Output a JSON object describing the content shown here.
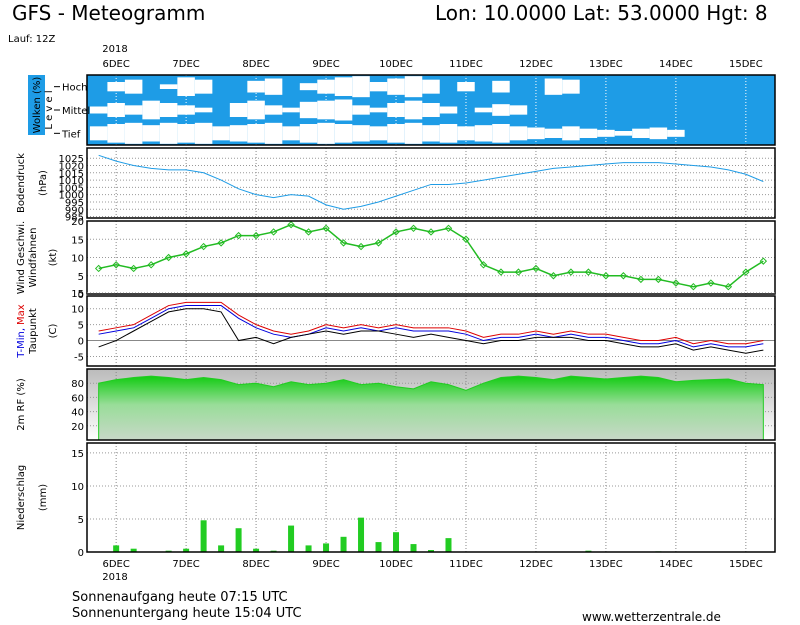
{
  "header": {
    "title": "GFS - Meteogramm",
    "location": "Lon: 10.0000 Lat: 53.0000 Hgt: 8",
    "run": "Lauf: 12Z"
  },
  "time": {
    "year": "2018",
    "xlim": [
      -10,
      226
    ],
    "xticks": [
      {
        "value": 0,
        "label": "6DEC"
      },
      {
        "value": 24,
        "label": "7DEC"
      },
      {
        "value": 48,
        "label": "8DEC"
      },
      {
        "value": 72,
        "label": "9DEC"
      },
      {
        "value": 96,
        "label": "10DEC"
      },
      {
        "value": 120,
        "label": "11DEC"
      },
      {
        "value": 144,
        "label": "12DEC"
      },
      {
        "value": 168,
        "label": "13DEC"
      },
      {
        "value": 192,
        "label": "14DEC"
      },
      {
        "value": 216,
        "label": "15DEC"
      }
    ],
    "x": [
      -6,
      0,
      6,
      12,
      18,
      24,
      30,
      36,
      42,
      48,
      54,
      60,
      66,
      72,
      78,
      84,
      90,
      96,
      102,
      108,
      114,
      120,
      126,
      132,
      138,
      144,
      150,
      156,
      162,
      168,
      174,
      180,
      186,
      192,
      198,
      204,
      210,
      216,
      222
    ]
  },
  "chart_data": [
    {
      "type": "band",
      "ylabel": "Wolken (%)",
      "level_label": "L e v e l",
      "background": "#1e9ce6",
      "color": "#ffffff",
      "series": [
        {
          "name": "Hoch",
          "values": [
            0,
            40,
            60,
            0,
            20,
            80,
            60,
            0,
            0,
            50,
            70,
            0,
            30,
            60,
            80,
            90,
            40,
            70,
            90,
            60,
            0,
            40,
            0,
            50,
            0,
            0,
            70,
            60,
            0,
            0,
            0,
            0,
            0,
            0,
            0,
            0,
            0,
            0,
            0
          ]
        },
        {
          "name": "Mittel",
          "values": [
            30,
            60,
            40,
            80,
            60,
            40,
            20,
            0,
            60,
            80,
            40,
            20,
            70,
            80,
            90,
            40,
            20,
            60,
            80,
            60,
            30,
            0,
            20,
            50,
            40,
            0,
            0,
            0,
            0,
            0,
            0,
            0,
            0,
            0,
            0,
            0,
            0,
            0,
            0
          ]
        },
        {
          "name": "Tief",
          "values": [
            60,
            80,
            90,
            70,
            90,
            80,
            90,
            60,
            70,
            80,
            90,
            60,
            80,
            90,
            80,
            70,
            60,
            80,
            90,
            70,
            80,
            60,
            70,
            80,
            60,
            50,
            40,
            60,
            40,
            30,
            20,
            40,
            50,
            30,
            0,
            0,
            0,
            0,
            0
          ]
        }
      ]
    },
    {
      "type": "line",
      "ylabel": [
        "Bodendruck",
        "(hPa)"
      ],
      "color": "#1e9ce6",
      "ylim": [
        984,
        1032
      ],
      "yticks": [
        985,
        990,
        995,
        1000,
        1005,
        1010,
        1015,
        1020,
        1025
      ],
      "grid": true,
      "values": [
        1027,
        1023,
        1020,
        1018,
        1017,
        1017,
        1015,
        1010,
        1004,
        1000,
        998,
        1000,
        999,
        993,
        990,
        992,
        995,
        999,
        1003,
        1007,
        1007,
        1008,
        1010,
        1012,
        1014,
        1016,
        1018,
        1019,
        1020,
        1021,
        1022,
        1022,
        1022,
        1021,
        1020,
        1019,
        1017,
        1014,
        1009
      ]
    },
    {
      "type": "line",
      "ylabel": [
        "Windfahnen",
        "(kt)"
      ],
      "ylim": [
        0,
        20
      ],
      "yticks": [
        0,
        5,
        10,
        15,
        20
      ],
      "grid": true,
      "markers": true,
      "series": [
        {
          "name": "Wind Geschwi.",
          "color": "#22bb22",
          "values": [
            7,
            8,
            7,
            8,
            10,
            11,
            13,
            14,
            16,
            16,
            17,
            19,
            17,
            18,
            14,
            13,
            14,
            17,
            18,
            17,
            18,
            15,
            8,
            6,
            6,
            7,
            5,
            6,
            6,
            5,
            5,
            4,
            4,
            3,
            2,
            3,
            2,
            6,
            9
          ]
        }
      ]
    },
    {
      "type": "line",
      "ylabel": [
        "(C)"
      ],
      "ylim": [
        -8,
        14
      ],
      "yticks": [
        -5,
        0,
        5,
        10,
        15
      ],
      "grid": true,
      "series": [
        {
          "name": "T-Min,",
          "color": "#0000dd",
          "values": [
            2,
            3,
            4,
            7,
            10,
            11,
            11,
            11,
            7,
            4,
            2,
            1,
            2,
            4,
            3,
            4,
            3,
            4,
            3,
            3,
            3,
            2,
            0,
            1,
            1,
            2,
            1,
            2,
            1,
            1,
            0,
            -1,
            -1,
            0,
            -2,
            -1,
            -2,
            -2,
            -1
          ]
        },
        {
          "name": "Max",
          "color": "#dd0000",
          "values": [
            3,
            4,
            5,
            8,
            11,
            12,
            12,
            12,
            8,
            5,
            3,
            2,
            3,
            5,
            4,
            5,
            4,
            5,
            4,
            4,
            4,
            3,
            1,
            2,
            2,
            3,
            2,
            3,
            2,
            2,
            1,
            0,
            0,
            1,
            -1,
            0,
            -1,
            -1,
            0
          ]
        },
        {
          "name": "Taupunkt",
          "color": "#000000",
          "values": [
            -2,
            0,
            3,
            6,
            9,
            10,
            10,
            9,
            0,
            1,
            -1,
            1,
            2,
            3,
            2,
            3,
            3,
            2,
            1,
            2,
            1,
            0,
            -1,
            0,
            0,
            1,
            1,
            1,
            0,
            0,
            -1,
            -2,
            -2,
            -1,
            -3,
            -2,
            -3,
            -4,
            -3
          ]
        }
      ]
    },
    {
      "type": "area",
      "ylim": [
        0,
        100
      ],
      "yticks": [
        20,
        40,
        60,
        80
      ],
      "grid": true,
      "series": [
        {
          "name": "2m RF (%)",
          "color": "#22cc22",
          "values": [
            80,
            85,
            88,
            90,
            88,
            85,
            88,
            85,
            78,
            80,
            75,
            82,
            78,
            80,
            85,
            78,
            80,
            75,
            72,
            82,
            78,
            70,
            80,
            88,
            90,
            88,
            85,
            90,
            88,
            86,
            88,
            90,
            88,
            82,
            84,
            85,
            86,
            80,
            78
          ]
        }
      ]
    },
    {
      "type": "bar",
      "ylabel": [
        "Niederschlag",
        "(mm)"
      ],
      "color": "#22cc22",
      "ylim": [
        0,
        16.5
      ],
      "yticks": [
        0,
        5,
        10,
        15
      ],
      "grid": true,
      "values": [
        0,
        1,
        0.5,
        0,
        0.2,
        0.5,
        4.8,
        1,
        3.6,
        0.5,
        0.2,
        4,
        1,
        1.3,
        2.3,
        5.2,
        1.5,
        3,
        1.2,
        0.3,
        2.1,
        0,
        0,
        0,
        0,
        0,
        0,
        0,
        0.2,
        0,
        0,
        0,
        0.1,
        0,
        0,
        0,
        0,
        0,
        0
      ]
    }
  ],
  "footer": {
    "sunrise": "Sonnenaufgang heute 07:15 UTC",
    "sunset": "Sonnenuntergang heute 15:04 UTC",
    "source": "www.wetterzentrale.de"
  }
}
